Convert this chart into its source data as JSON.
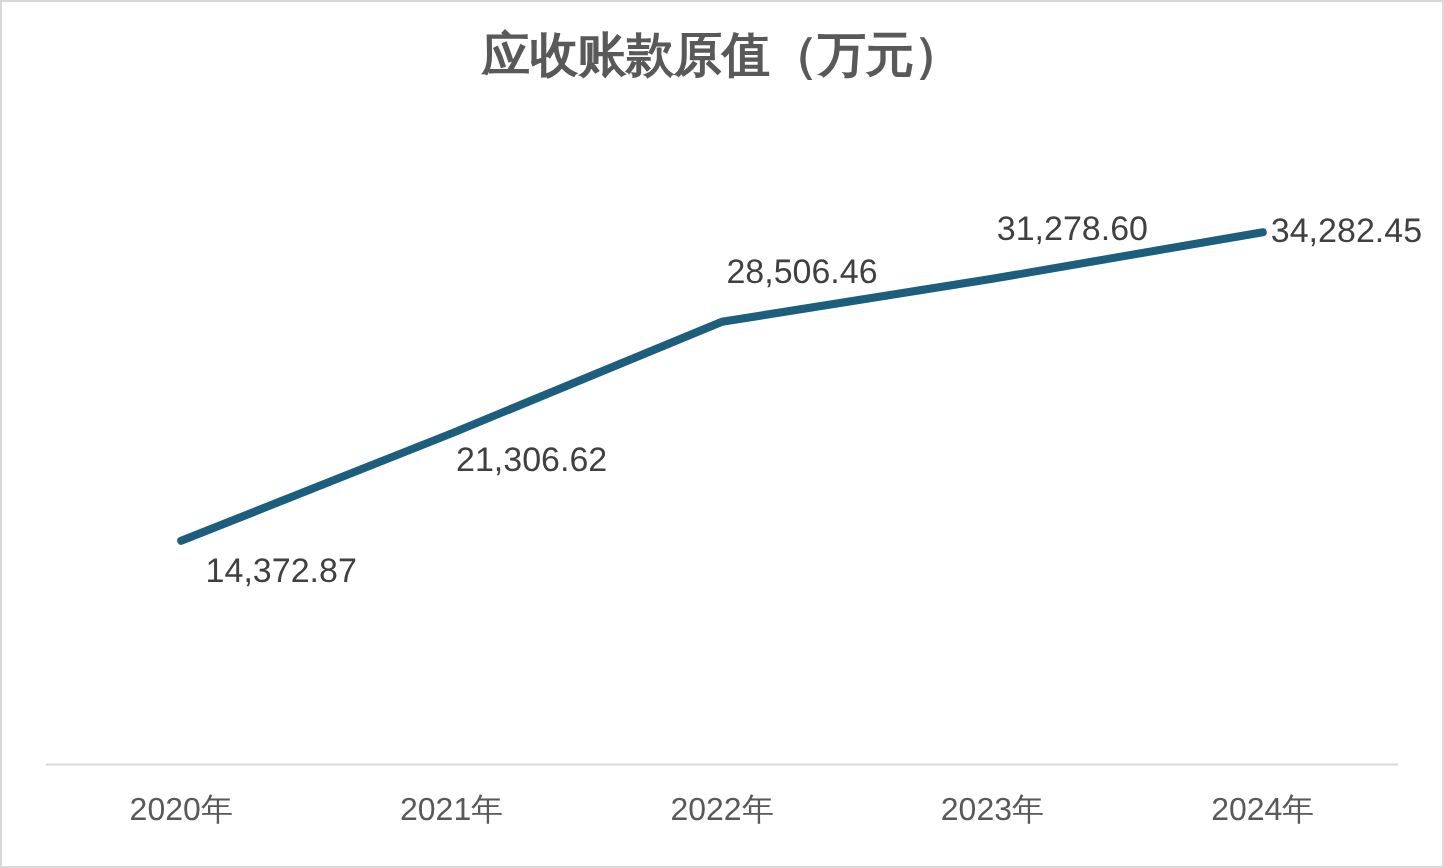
{
  "chart_data": {
    "type": "line",
    "title": "应收账款原值（万元）",
    "categories": [
      "2020年",
      "2021年",
      "2022年",
      "2023年",
      "2024年"
    ],
    "series": [
      {
        "color": "#1b5e7e",
        "values": [
          14372.87,
          21306.62,
          28506.46,
          31278.6,
          34282.45
        ],
        "value_labels": [
          "14,372.87",
          "21,306.62",
          "28,506.46",
          "31,278.60",
          "34,282.45"
        ]
      }
    ],
    "tick_labels": "x",
    "grid": false,
    "legend": false,
    "marker": "none"
  }
}
